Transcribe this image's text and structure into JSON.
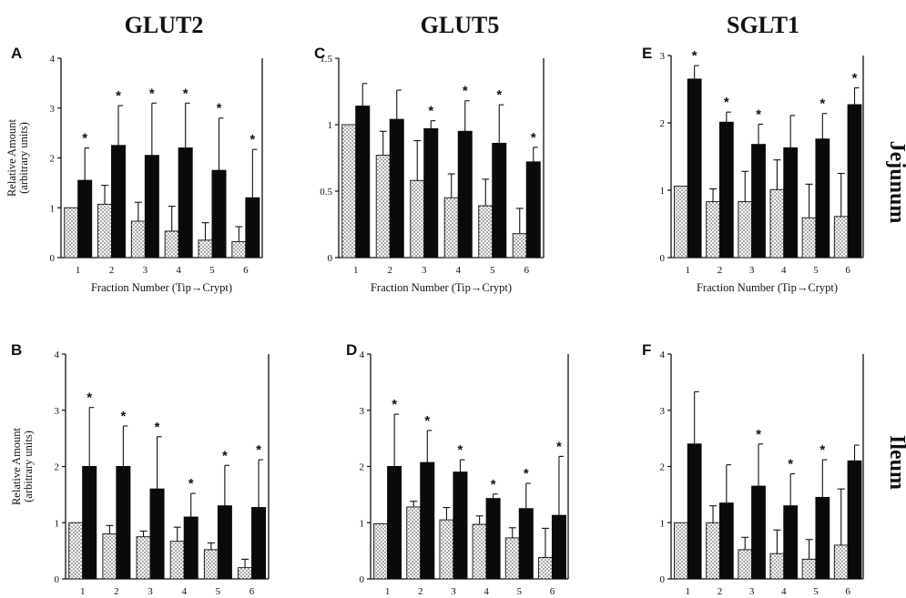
{
  "titles": {
    "col1": "GLUT2",
    "col2": "GLUT5",
    "col3": "SGLT1",
    "row1": "Jejunum",
    "row2": "Ileum"
  },
  "colors": {
    "dark_bar": "#0a0a0a",
    "light_bar_fill": "#ffffff",
    "light_bar_dots": "#333333"
  },
  "chart_data": [
    {
      "panel": "A",
      "type": "bar",
      "ylim": [
        0,
        4
      ],
      "yticks": [
        "0",
        "1",
        "2",
        "3",
        "4"
      ],
      "ylabel": [
        "Relative Amount",
        "(arbitrary units)"
      ],
      "xlabel": "Fraction Number (Tip→Crypt)",
      "categories": [
        "1",
        "2",
        "3",
        "4",
        "5",
        "6"
      ],
      "series": [
        {
          "values": [
            1.0,
            1.07,
            0.73,
            0.53,
            0.35,
            0.32
          ],
          "errors": [
            0.0,
            0.38,
            0.38,
            0.5,
            0.35,
            0.3
          ]
        },
        {
          "values": [
            1.55,
            2.25,
            2.05,
            2.2,
            1.75,
            1.2
          ],
          "errors": [
            0.65,
            0.8,
            1.05,
            0.9,
            1.05,
            0.97
          ]
        }
      ],
      "significant": [
        true,
        true,
        true,
        true,
        true,
        true
      ]
    },
    {
      "panel": "C",
      "type": "bar",
      "ylim": [
        0,
        1.5
      ],
      "yticks": [
        "0",
        "0.5",
        "1",
        "1.5"
      ],
      "xlabel": "Fraction Number (Tip→Crypt)",
      "categories": [
        "1",
        "2",
        "3",
        "4",
        "5",
        "6"
      ],
      "series": [
        {
          "values": [
            1.0,
            0.77,
            0.58,
            0.45,
            0.39,
            0.18
          ],
          "errors": [
            0.0,
            0.18,
            0.3,
            0.18,
            0.2,
            0.19
          ]
        },
        {
          "values": [
            1.14,
            1.04,
            0.97,
            0.95,
            0.86,
            0.72
          ],
          "errors": [
            0.17,
            0.22,
            0.06,
            0.23,
            0.29,
            0.11
          ]
        }
      ],
      "significant": [
        false,
        false,
        true,
        true,
        true,
        true
      ]
    },
    {
      "panel": "E",
      "type": "bar",
      "ylim": [
        0,
        3
      ],
      "yticks": [
        "0",
        "1",
        "2",
        "3"
      ],
      "xlabel": "Fraction Number (Tip→Crypt)",
      "categories": [
        "1",
        "2",
        "3",
        "4",
        "5",
        "6"
      ],
      "series": [
        {
          "values": [
            1.06,
            0.83,
            0.83,
            1.01,
            0.59,
            0.61
          ],
          "errors": [
            0.0,
            0.19,
            0.45,
            0.44,
            0.5,
            0.64
          ]
        },
        {
          "values": [
            2.65,
            2.01,
            1.68,
            1.63,
            1.76,
            2.27
          ],
          "errors": [
            0.2,
            0.15,
            0.3,
            0.48,
            0.38,
            0.25
          ]
        }
      ],
      "significant": [
        true,
        true,
        true,
        false,
        true,
        true
      ]
    },
    {
      "panel": "B",
      "type": "bar",
      "ylim": [
        0,
        4
      ],
      "yticks": [
        "0",
        "1",
        "2",
        "3",
        "4"
      ],
      "ylabel": [
        "Relative Amount",
        "(arbitrary units)"
      ],
      "xlabel": "Fraction Number (Tip→Crypt)",
      "categories": [
        "1",
        "2",
        "3",
        "4",
        "5",
        "6"
      ],
      "series": [
        {
          "values": [
            1.0,
            0.8,
            0.75,
            0.67,
            0.52,
            0.2
          ],
          "errors": [
            0.0,
            0.15,
            0.1,
            0.25,
            0.12,
            0.15
          ]
        },
        {
          "values": [
            2.0,
            2.0,
            1.6,
            1.1,
            1.3,
            1.27
          ],
          "errors": [
            1.05,
            0.72,
            0.93,
            0.42,
            0.72,
            0.85
          ]
        }
      ],
      "significant": [
        true,
        true,
        true,
        true,
        true,
        true
      ]
    },
    {
      "panel": "D",
      "type": "bar",
      "ylim": [
        0,
        4
      ],
      "yticks": [
        "0",
        "1",
        "2",
        "3",
        "4"
      ],
      "xlabel": "Fraction Number (Tip→Crypt)",
      "categories": [
        "1",
        "2",
        "3",
        "4",
        "5",
        "6"
      ],
      "series": [
        {
          "values": [
            0.98,
            1.28,
            1.05,
            0.97,
            0.73,
            0.38
          ],
          "errors": [
            0.0,
            0.1,
            0.22,
            0.15,
            0.18,
            0.52
          ]
        },
        {
          "values": [
            2.0,
            2.07,
            1.9,
            1.43,
            1.25,
            1.13
          ],
          "errors": [
            0.93,
            0.57,
            0.22,
            0.08,
            0.45,
            1.05
          ]
        }
      ],
      "significant": [
        true,
        true,
        true,
        true,
        true,
        true
      ]
    },
    {
      "panel": "F",
      "type": "bar",
      "ylim": [
        0,
        4
      ],
      "yticks": [
        "0",
        "1",
        "2",
        "3",
        "4"
      ],
      "xlabel": "Fraction Number (Tip→Crypt)",
      "categories": [
        "1",
        "2",
        "3",
        "4",
        "5",
        "6"
      ],
      "series": [
        {
          "values": [
            1.0,
            1.0,
            0.52,
            0.45,
            0.35,
            0.6
          ],
          "errors": [
            0.0,
            0.3,
            0.22,
            0.42,
            0.35,
            1.0
          ]
        },
        {
          "values": [
            2.4,
            1.35,
            1.65,
            1.3,
            1.45,
            2.1
          ],
          "errors": [
            0.93,
            0.68,
            0.75,
            0.57,
            0.67,
            0.28
          ]
        }
      ],
      "significant": [
        false,
        false,
        true,
        true,
        true,
        false
      ]
    }
  ]
}
